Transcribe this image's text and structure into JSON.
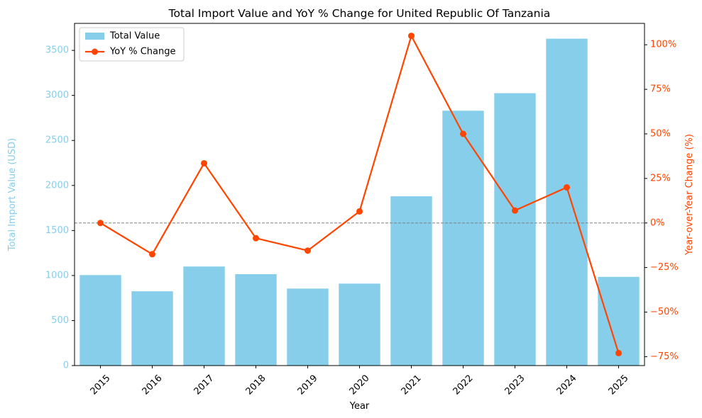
{
  "chart_data": {
    "type": "bar",
    "title": "Total Import Value and YoY % Change for United Republic Of Tanzania",
    "xlabel": "Year",
    "ylabel_left": "Total Import Value (USD)",
    "ylabel_right": "Year-over-Year Change (%)",
    "categories": [
      "2015",
      "2016",
      "2017",
      "2018",
      "2019",
      "2020",
      "2021",
      "2022",
      "2023",
      "2024",
      "2025"
    ],
    "ylim_left": [
      0,
      3800
    ],
    "ylim_right": [
      -80,
      112
    ],
    "left_ticks": [
      0,
      500,
      1000,
      1500,
      2000,
      2500,
      3000,
      3500
    ],
    "right_ticks": [
      -75,
      -50,
      -25,
      0,
      25,
      50,
      75,
      100
    ],
    "right_tick_labels": [
      "−75%",
      "−50%",
      "−25%",
      "0%",
      "25%",
      "50%",
      "75%",
      "100%"
    ],
    "series": [
      {
        "name": "Total Value",
        "type": "bar",
        "axis": "left",
        "color": "#87CEEB",
        "values": [
          1005,
          825,
          1100,
          1015,
          855,
          910,
          1880,
          2830,
          3025,
          3630,
          985
        ]
      },
      {
        "name": "YoY % Change",
        "type": "line",
        "axis": "right",
        "color": "#FF4500",
        "values": [
          0,
          -17.5,
          33.5,
          -8.5,
          -15.5,
          6.5,
          105,
          50,
          7,
          20,
          -73
        ]
      }
    ],
    "reference_line": {
      "axis": "right",
      "value": 0,
      "style": "dashed",
      "color": "#808080"
    },
    "legend_position": "top-left",
    "left_axis_color": "#87CEEB",
    "right_axis_color": "#FF4500",
    "grid": false
  }
}
